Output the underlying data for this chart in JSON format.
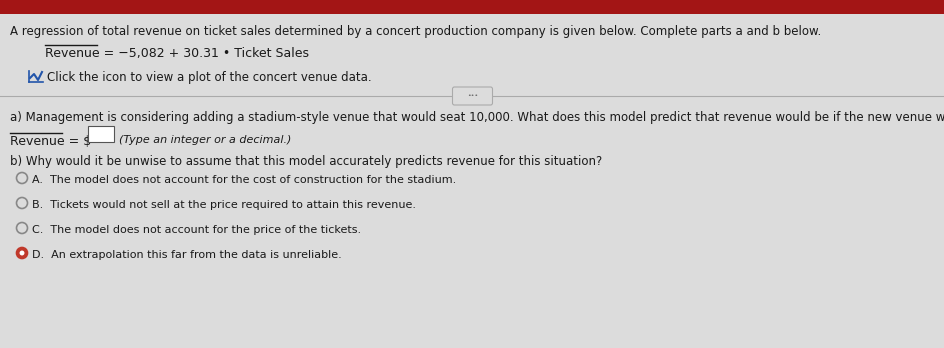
{
  "bg_color": "#dcdcdc",
  "header_bg": "#a31515",
  "title_line": "A regression of total revenue on ticket sales determined by a concert production company is given below. Complete parts a and b below.",
  "equation_text": "Revenue = −5,082 + 30.31 • Ticket Sales",
  "click_icon_text": "Click the icon to view a plot of the concert venue data.",
  "part_a_text": "a) Management is considering adding a stadium-style venue that would seat 10,000. What does this model predict that revenue would be if the new venue were to sell out?",
  "part_a_prefix": "Revenue = $",
  "part_a_hint": "(Type an integer or a decimal.)",
  "part_b_question": "b) Why would it be unwise to assume that this model accurately predicts revenue for this situation?",
  "options": [
    {
      "letter": "A",
      "text": "The model does not account for the cost of construction for the stadium.",
      "selected": false
    },
    {
      "letter": "B",
      "text": "Tickets would not sell at the price required to attain this revenue.",
      "selected": false
    },
    {
      "letter": "C",
      "text": "The model does not account for the price of the tickets.",
      "selected": false
    },
    {
      "letter": "D",
      "text": "An extrapolation this far from the data is unreliable.",
      "selected": true
    }
  ],
  "text_color": "#1a1a1a",
  "radio_unsel_color": "#888888",
  "radio_sel_color": "#c0392b",
  "divider_color": "#aaaaaa",
  "fs_title": 8.5,
  "fs_eq": 9.0,
  "fs_body": 8.5,
  "fs_small": 8.0
}
